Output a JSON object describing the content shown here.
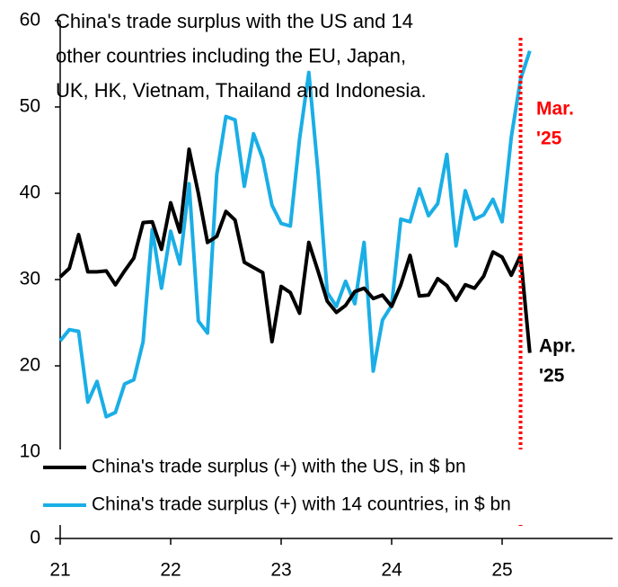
{
  "chart_data": {
    "type": "line",
    "title_lines": [
      "China's trade surplus with the US and 14",
      "other countries including the EU, Japan,",
      "UK, HK, Vietnam, Thailand and Indonesia."
    ],
    "x": [
      21,
      21.083,
      21.167,
      21.25,
      21.333,
      21.417,
      21.5,
      21.583,
      21.667,
      21.75,
      21.833,
      21.917,
      22,
      22.083,
      22.167,
      22.25,
      22.333,
      22.417,
      22.5,
      22.583,
      22.667,
      22.75,
      22.833,
      22.917,
      23,
      23.083,
      23.167,
      23.25,
      23.333,
      23.417,
      23.5,
      23.583,
      23.667,
      23.75,
      23.833,
      23.917,
      24,
      24.083,
      24.167,
      24.25,
      24.333,
      24.417,
      24.5,
      24.583,
      24.667,
      24.75,
      24.833,
      24.917,
      25,
      25.083,
      25.167,
      25.25
    ],
    "series": [
      {
        "name": "China's trade surplus (+) with the US, in $ bn",
        "color": "#000000",
        "values": [
          30.3,
          31.3,
          35.2,
          30.9,
          30.9,
          31.0,
          29.4,
          31.0,
          32.5,
          36.6,
          36.7,
          33.5,
          38.9,
          35.5,
          45.1,
          40.0,
          34.3,
          35.0,
          37.9,
          36.9,
          32.0,
          31.4,
          30.8,
          22.8,
          29.2,
          28.5,
          26.1,
          34.3,
          31.0,
          27.5,
          26.2,
          27.0,
          28.6,
          29.0,
          27.8,
          28.2,
          26.9,
          29.4,
          32.8,
          28.1,
          28.2,
          30.1,
          29.3,
          27.6,
          29.4,
          29.0,
          30.4,
          33.2,
          32.6,
          30.5,
          32.8,
          21.5
        ]
      },
      {
        "name": "China's trade surplus (+) with 14 countries, in $ bn",
        "color": "#1aaee6",
        "values": [
          22.9,
          24.2,
          24.0,
          15.8,
          18.2,
          14.1,
          14.6,
          17.9,
          18.4,
          22.8,
          35.8,
          29.0,
          35.6,
          31.8,
          41.1,
          25.2,
          23.8,
          42.2,
          48.9,
          48.5,
          40.8,
          46.9,
          44.0,
          38.6,
          36.5,
          36.2,
          46.3,
          54.0,
          42.5,
          28.5,
          26.9,
          29.8,
          27.2,
          34.3,
          19.4,
          25.3,
          27.0,
          37.0,
          36.7,
          40.5,
          37.4,
          38.8,
          44.5,
          33.9,
          40.3,
          37.0,
          37.5,
          39.3,
          36.7,
          46.5,
          53.2,
          56.5
        ]
      }
    ],
    "xlim": [
      21,
      26
    ],
    "xticks": [
      21,
      22,
      23,
      24,
      25
    ],
    "ylim": [
      0,
      60
    ],
    "yticks": [
      0,
      10,
      20,
      30,
      40,
      50,
      60
    ],
    "grid": false,
    "annotations": [
      {
        "lines": [
          "Mar.",
          "'25"
        ],
        "color": "#ff0000",
        "x": 25.167
      },
      {
        "lines": [
          "Apr.",
          "'25"
        ],
        "color": "#000000"
      }
    ]
  }
}
